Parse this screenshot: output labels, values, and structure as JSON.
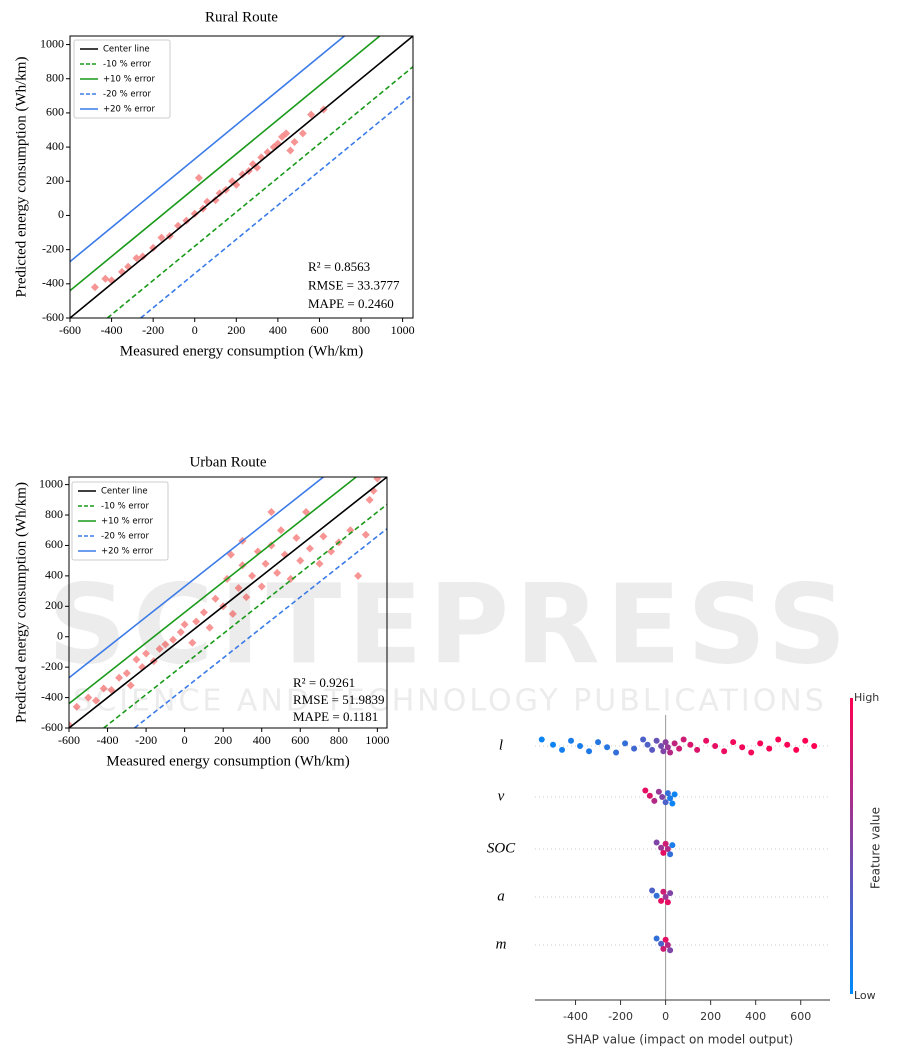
{
  "watermark": {
    "title": "SCITEPRESS",
    "subtitle": "SCIENCE AND TECHNOLOGY PUBLICATIONS"
  },
  "chart_data": [
    {
      "type": "scatter",
      "title": "Rural Route",
      "xlabel": "Measured energy consumption (Wh/km)",
      "ylabel": "Predicted energy consumption (Wh/km)",
      "xlim": [
        -600,
        1050
      ],
      "ylim": [
        -600,
        1050
      ],
      "xticks": [
        -600,
        -400,
        -200,
        0,
        200,
        400,
        600,
        800,
        1000
      ],
      "yticks": [
        -600,
        -400,
        -200,
        0,
        200,
        400,
        600,
        800,
        1000
      ],
      "annotations": [
        "R² = 0.8563",
        "RMSE = 33.3777",
        "MAPE = 0.2460"
      ],
      "lines": [
        {
          "name": "Center line",
          "color": "#000000",
          "dash": false,
          "x": [
            -600,
            1050
          ],
          "y": [
            -600,
            1050
          ]
        },
        {
          "name": "-10 % error",
          "color": "#1a9a1a",
          "dash": true,
          "x": [
            -420,
            1050
          ],
          "y": [
            -600,
            870
          ]
        },
        {
          "name": "+10 % error",
          "color": "#1a9a1a",
          "dash": false,
          "x": [
            -600,
            890
          ],
          "y": [
            -440,
            1050
          ]
        },
        {
          "name": "-20 % error",
          "color": "#3b7be8",
          "dash": true,
          "x": [
            -260,
            1050
          ],
          "y": [
            -600,
            710
          ]
        },
        {
          "name": "+20 % error",
          "color": "#3b7be8",
          "dash": false,
          "x": [
            -600,
            720
          ],
          "y": [
            -270,
            1050
          ]
        }
      ],
      "points": {
        "color": "#f03c3c",
        "x": [
          -480,
          -430,
          -400,
          -350,
          -320,
          -280,
          -250,
          -200,
          -160,
          -120,
          -80,
          -40,
          0,
          20,
          40,
          60,
          100,
          120,
          150,
          180,
          200,
          230,
          260,
          280,
          300,
          320,
          350,
          380,
          400,
          420,
          440,
          480,
          520,
          560,
          620,
          460
        ],
        "y": [
          -420,
          -370,
          -380,
          -330,
          -300,
          -250,
          -240,
          -190,
          -130,
          -120,
          -60,
          -30,
          10,
          220,
          40,
          80,
          90,
          130,
          150,
          200,
          180,
          240,
          260,
          300,
          280,
          340,
          370,
          400,
          420,
          460,
          480,
          430,
          480,
          590,
          620,
          380
        ]
      }
    },
    {
      "type": "scatter",
      "title": "Urban Route",
      "xlabel": "Measured energy consumption (Wh/km)",
      "ylabel": "Predicted energy consumption (Wh/km)",
      "xlim": [
        -600,
        1050
      ],
      "ylim": [
        -600,
        1050
      ],
      "xticks": [
        -600,
        -400,
        -200,
        0,
        200,
        400,
        600,
        800,
        1000
      ],
      "yticks": [
        -600,
        -400,
        -200,
        0,
        200,
        400,
        600,
        800,
        1000
      ],
      "annotations": [
        "R² = 0.9261",
        "RMSE = 51.9839",
        "MAPE = 0.1181"
      ],
      "lines": [
        {
          "name": "Center line",
          "color": "#000000",
          "dash": false,
          "x": [
            -600,
            1050
          ],
          "y": [
            -600,
            1050
          ]
        },
        {
          "name": "-10 % error",
          "color": "#1a9a1a",
          "dash": true,
          "x": [
            -420,
            1050
          ],
          "y": [
            -600,
            870
          ]
        },
        {
          "name": "+10 % error",
          "color": "#1a9a1a",
          "dash": false,
          "x": [
            -600,
            890
          ],
          "y": [
            -440,
            1050
          ]
        },
        {
          "name": "-20 % error",
          "color": "#3b7be8",
          "dash": true,
          "x": [
            -260,
            1050
          ],
          "y": [
            -600,
            710
          ]
        },
        {
          "name": "+20 % error",
          "color": "#3b7be8",
          "dash": false,
          "x": [
            -600,
            720
          ],
          "y": [
            -270,
            1050
          ]
        }
      ],
      "points": {
        "color": "#f03c3c",
        "x": [
          -600,
          -560,
          -500,
          -460,
          -420,
          -380,
          -340,
          -300,
          -280,
          -250,
          -220,
          -200,
          -160,
          -130,
          -100,
          -60,
          -20,
          0,
          40,
          60,
          100,
          130,
          160,
          200,
          220,
          250,
          280,
          300,
          320,
          350,
          380,
          400,
          420,
          450,
          480,
          500,
          520,
          550,
          580,
          600,
          630,
          650,
          700,
          720,
          760,
          800,
          860,
          900,
          940,
          980,
          1000,
          960,
          240,
          300,
          450
        ],
        "y": [
          -580,
          -460,
          -400,
          -420,
          -340,
          -350,
          -270,
          -240,
          -320,
          -150,
          -200,
          -110,
          -160,
          -80,
          -50,
          -20,
          30,
          80,
          -40,
          100,
          160,
          60,
          250,
          200,
          380,
          150,
          320,
          470,
          260,
          400,
          560,
          330,
          480,
          600,
          420,
          700,
          540,
          380,
          650,
          500,
          820,
          580,
          480,
          660,
          560,
          620,
          700,
          400,
          670,
          960,
          1040,
          900,
          540,
          630,
          820
        ]
      }
    },
    {
      "type": "beeswarm",
      "xlabel": "SHAP value (impact on model output)",
      "xlim": [
        -580,
        730
      ],
      "xticks": [
        -400,
        -200,
        0,
        200,
        400,
        600
      ],
      "colorbar": {
        "label": "Feature value",
        "high": "High",
        "low": "Low",
        "colors": [
          "#008bfb",
          "#ff0052"
        ]
      },
      "series": [
        {
          "name": "l",
          "values": [
            -550,
            -500,
            -460,
            -420,
            -380,
            -340,
            -300,
            -260,
            -220,
            -180,
            -140,
            -100,
            -80,
            -60,
            -40,
            -20,
            -10,
            0,
            10,
            20,
            40,
            60,
            80,
            110,
            140,
            180,
            220,
            260,
            300,
            340,
            380,
            420,
            460,
            500,
            540,
            580,
            620,
            660
          ],
          "feature_values": [
            0.05,
            0.05,
            0.08,
            0.1,
            0.1,
            0.12,
            0.15,
            0.15,
            0.2,
            0.2,
            0.25,
            0.3,
            0.3,
            0.35,
            0.4,
            0.45,
            0.5,
            0.55,
            0.6,
            0.7,
            0.75,
            0.8,
            0.8,
            0.85,
            0.85,
            0.9,
            0.9,
            0.92,
            0.95,
            0.95,
            0.95,
            0.97,
            0.97,
            0.98,
            0.98,
            1,
            1,
            1
          ]
        },
        {
          "name": "v",
          "values": [
            -90,
            -70,
            -50,
            -30,
            -15,
            0,
            10,
            20,
            30,
            40
          ],
          "feature_values": [
            0.9,
            0.85,
            0.7,
            0.6,
            0.5,
            0.3,
            0.2,
            0.1,
            0.05,
            0.05
          ]
        },
        {
          "name": "SOC",
          "values": [
            -40,
            -20,
            -10,
            0,
            10,
            20,
            30
          ],
          "feature_values": [
            0.5,
            0.6,
            0.9,
            0.8,
            0.7,
            0.2,
            0.1
          ]
        },
        {
          "name": "a",
          "values": [
            -60,
            -40,
            -20,
            -10,
            0,
            10,
            20
          ],
          "feature_values": [
            0.3,
            0.2,
            0.9,
            0.8,
            0.6,
            0.9,
            0.5
          ]
        },
        {
          "name": "m",
          "values": [
            -40,
            -20,
            -10,
            0,
            10,
            20
          ],
          "feature_values": [
            0.2,
            0.3,
            0.8,
            0.9,
            0.7,
            0.5
          ]
        }
      ]
    }
  ]
}
